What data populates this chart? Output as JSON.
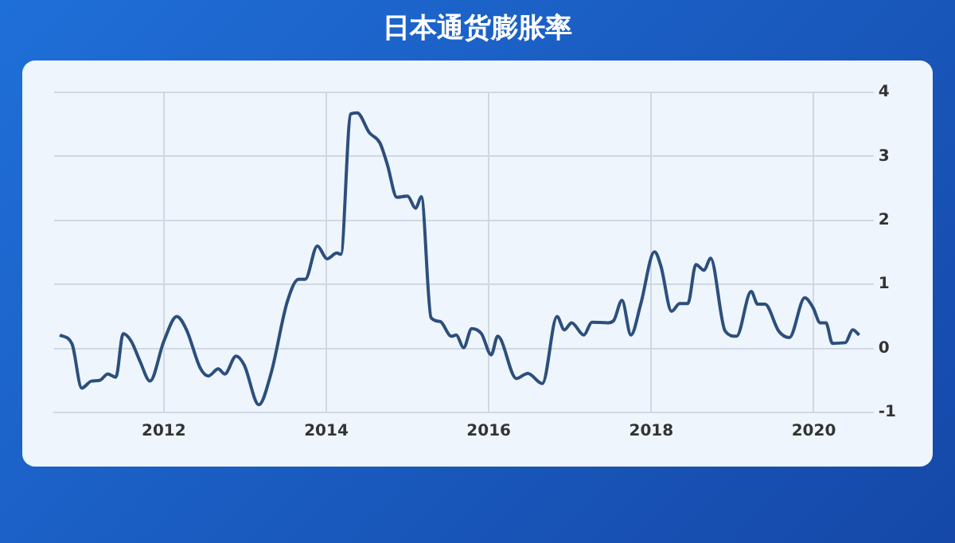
{
  "chart_data": {
    "type": "line",
    "title": "日本通货膨胀率",
    "x": [
      2010.72,
      2010.87,
      2010.99,
      2011.11,
      2011.21,
      2011.31,
      2011.41,
      2011.5,
      2011.6,
      2011.71,
      2011.83,
      2012.0,
      2012.16,
      2012.28,
      2012.45,
      2012.55,
      2012.67,
      2012.75,
      2012.89,
      2012.99,
      2013.17,
      2013.32,
      2013.52,
      2013.66,
      2013.74,
      2013.89,
      2014.01,
      2014.13,
      2014.18,
      2014.3,
      2014.38,
      2014.53,
      2014.66,
      2014.75,
      2014.87,
      2015.0,
      2015.1,
      2015.17,
      2015.29,
      2015.4,
      2015.54,
      2015.6,
      2015.69,
      2015.79,
      2015.91,
      2016.03,
      2016.11,
      2016.34,
      2016.48,
      2016.66,
      2016.84,
      2016.93,
      2017.02,
      2017.17,
      2017.27,
      2017.47,
      2017.54,
      2017.64,
      2017.75,
      2017.87,
      2018.04,
      2018.12,
      2018.25,
      2018.35,
      2018.45,
      2018.55,
      2018.65,
      2018.73,
      2018.91,
      2019.05,
      2019.23,
      2019.31,
      2019.4,
      2019.57,
      2019.7,
      2019.89,
      2019.99,
      2020.08,
      2020.15,
      2020.23,
      2020.39,
      2020.48,
      2020.56
    ],
    "series": [
      {
        "color": "#2c4f7c",
        "values": [
          0.21,
          0.07,
          -0.62,
          -0.51,
          -0.5,
          -0.4,
          -0.45,
          0.23,
          0.11,
          -0.21,
          -0.51,
          0.11,
          0.5,
          0.29,
          -0.31,
          -0.43,
          -0.32,
          -0.4,
          -0.12,
          -0.26,
          -0.88,
          -0.39,
          0.73,
          1.08,
          1.08,
          1.6,
          1.4,
          1.49,
          1.47,
          3.66,
          3.68,
          3.37,
          3.21,
          2.88,
          2.36,
          2.38,
          2.19,
          2.37,
          0.48,
          0.42,
          0.19,
          0.21,
          0.01,
          0.31,
          0.23,
          -0.1,
          0.19,
          -0.47,
          -0.39,
          -0.55,
          0.5,
          0.29,
          0.4,
          0.21,
          0.41,
          0.4,
          0.44,
          0.75,
          0.21,
          0.69,
          1.51,
          1.28,
          0.58,
          0.7,
          0.7,
          1.31,
          1.22,
          1.41,
          0.27,
          0.19,
          0.89,
          0.69,
          0.69,
          0.27,
          0.17,
          0.79,
          0.64,
          0.4,
          0.4,
          0.08,
          0.09,
          0.29,
          0.21
        ]
      }
    ],
    "xlim": [
      2010.65,
      2020.62
    ],
    "xticks": [
      2012,
      2014,
      2016,
      2018,
      2020
    ],
    "ylim": [
      -1,
      4
    ],
    "yticks": [
      -1,
      0,
      1,
      2,
      3,
      4
    ],
    "grid": true,
    "legend": false,
    "marker": "none",
    "line_style": "solid"
  }
}
